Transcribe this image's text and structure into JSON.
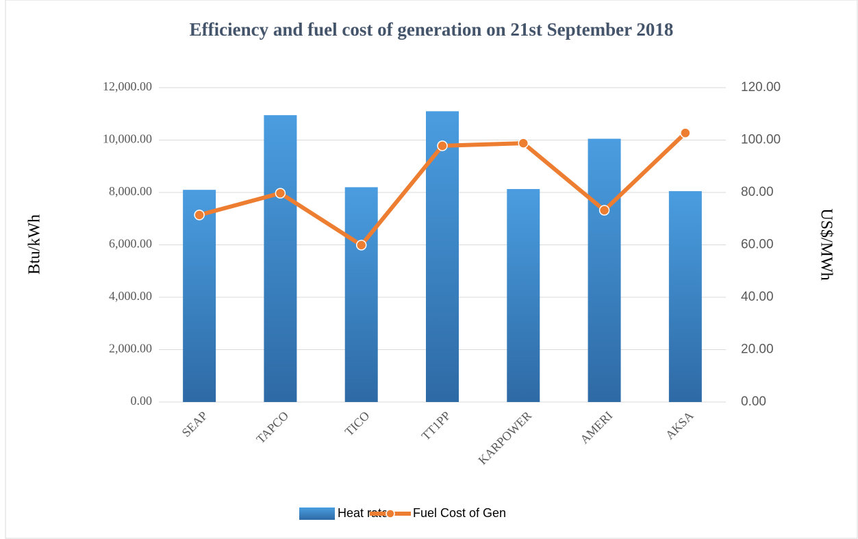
{
  "chart_data": {
    "type": "bar_line",
    "title": "Efficiency and fuel cost of  generation on 21st September 2018",
    "ylabel": "Btu/kWh",
    "y2label": "US$/MWh",
    "categories": [
      "SEAP",
      "TAPCO",
      "TICO",
      "TT1PP",
      "KARPOWER",
      "AMERI",
      "AKSA"
    ],
    "series": [
      {
        "name": "Heat rate",
        "type": "bar",
        "color": "#4a9de0",
        "values": [
          8100,
          10950,
          8200,
          11100,
          8130,
          10050,
          8050
        ]
      },
      {
        "name": "Fuel Cost of Gen",
        "type": "line",
        "axis": "y2",
        "color": "#ed7d31",
        "values": [
          71.4,
          79.7,
          59.9,
          97.8,
          98.8,
          73.2,
          102.7
        ]
      }
    ],
    "ylim": [
      0,
      12000
    ],
    "yticks": [
      {
        "value": 0,
        "label": "0.00"
      },
      {
        "value": 2000,
        "label": "2,000.00"
      },
      {
        "value": 4000,
        "label": "4,000.00"
      },
      {
        "value": 6000,
        "label": "6,000.00"
      },
      {
        "value": 8000,
        "label": "8,000.00"
      },
      {
        "value": 10000,
        "label": "10,000.00"
      },
      {
        "value": 12000,
        "label": "12,000.00"
      }
    ],
    "y2lim": [
      0,
      120
    ],
    "y2ticks": [
      {
        "value": 0,
        "label": "0.00"
      },
      {
        "value": 20,
        "label": "20.00"
      },
      {
        "value": 40,
        "label": "40.00"
      },
      {
        "value": 60,
        "label": "60.00"
      },
      {
        "value": 80,
        "label": "80.00"
      },
      {
        "value": 100,
        "label": "100.00"
      },
      {
        "value": 120,
        "label": "120.00"
      }
    ],
    "grid": true,
    "legend": "bottom"
  }
}
